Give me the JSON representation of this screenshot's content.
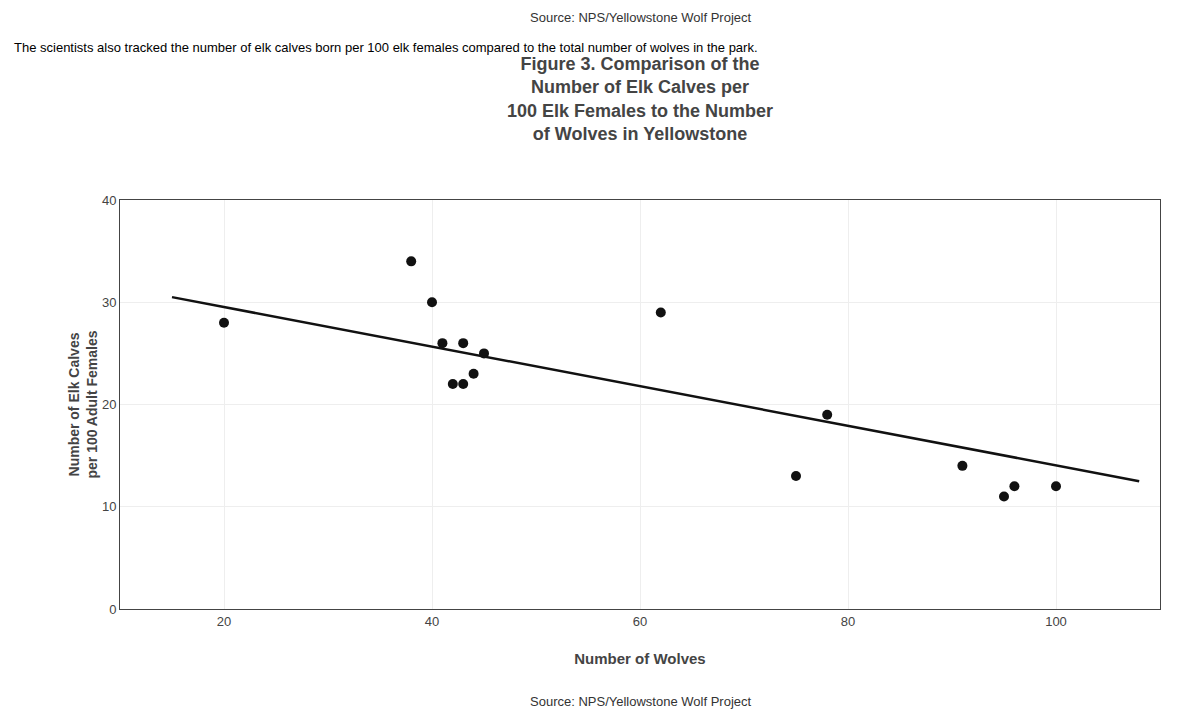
{
  "chart_data": {
    "type": "scatter",
    "title": "Figure 3. Comparison of the\nNumber of Elk Calves per\n100 Elk Females to the Number\nof Wolves in Yellowstone",
    "subtitle": "The scientists also tracked the number of elk calves born per 100 elk females compared to the total number of wolves in the park.",
    "annotations": [
      "Source: NPS/Yellowstone Wolf Project",
      "Source: NPS/Yellowstone Wolf Project"
    ],
    "xlabel": "Number of Wolves",
    "ylabel": "Number of Elk Calves\nper 100 Adult Females",
    "series": [
      {
        "type": "scatter",
        "color": "#111111",
        "x": [
          20,
          38,
          40,
          41,
          42,
          43,
          43,
          44,
          45,
          62,
          75,
          78,
          91,
          95,
          96,
          100
        ],
        "values": [
          28,
          34,
          30,
          26,
          22,
          22,
          26,
          23,
          25,
          29,
          13,
          19,
          14,
          11,
          12,
          12
        ]
      },
      {
        "type": "line",
        "color": "#111111",
        "x": [
          15,
          108
        ],
        "values": [
          30.5,
          12.5
        ]
      }
    ],
    "xlim": [
      10,
      110
    ],
    "ylim": [
      0,
      40
    ],
    "xticks": [
      20,
      40,
      60,
      80,
      100
    ],
    "yticks": [
      0,
      10,
      20,
      30,
      40
    ],
    "grid": true
  }
}
